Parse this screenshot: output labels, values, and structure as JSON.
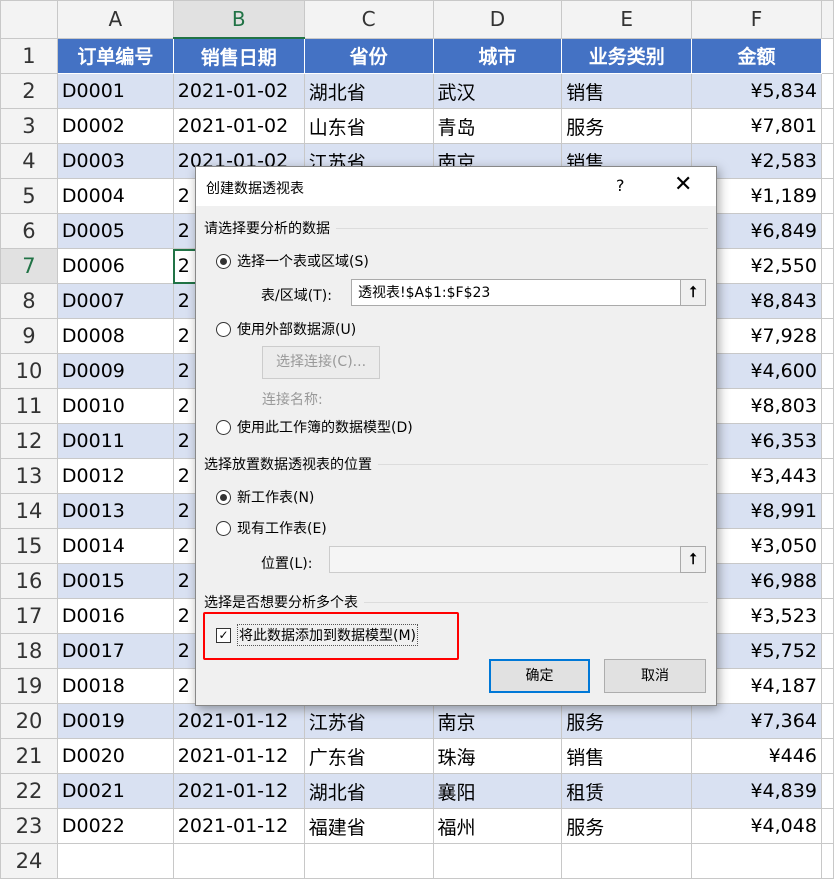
{
  "columns": [
    "A",
    "B",
    "C",
    "D",
    "E",
    "F"
  ],
  "header": [
    "订单编号",
    "销售日期",
    "省份",
    "城市",
    "业务类别",
    "金额"
  ],
  "rows": [
    [
      "D0001",
      "2021-01-02",
      "湖北省",
      "武汉",
      "销售",
      "¥5,834"
    ],
    [
      "D0002",
      "2021-01-02",
      "山东省",
      "青岛",
      "服务",
      "¥7,801"
    ],
    [
      "D0003",
      "2021-01-02",
      "江苏省",
      "南京",
      "销售",
      "¥2,583"
    ],
    [
      "D0004",
      "2",
      "",
      "",
      "",
      "¥1,189"
    ],
    [
      "D0005",
      "2",
      "",
      "",
      "",
      "¥6,849"
    ],
    [
      "D0006",
      "2",
      "",
      "",
      "",
      "¥2,550"
    ],
    [
      "D0007",
      "2",
      "",
      "",
      "",
      "¥8,843"
    ],
    [
      "D0008",
      "2",
      "",
      "",
      "",
      "¥7,928"
    ],
    [
      "D0009",
      "2",
      "",
      "",
      "",
      "¥4,600"
    ],
    [
      "D0010",
      "2",
      "",
      "",
      "",
      "¥8,803"
    ],
    [
      "D0011",
      "2",
      "",
      "",
      "",
      "¥6,353"
    ],
    [
      "D0012",
      "2",
      "",
      "",
      "",
      "¥3,443"
    ],
    [
      "D0013",
      "2",
      "",
      "",
      "",
      "¥8,991"
    ],
    [
      "D0014",
      "2",
      "",
      "",
      "",
      "¥3,050"
    ],
    [
      "D0015",
      "2",
      "",
      "",
      "",
      "¥6,988"
    ],
    [
      "D0016",
      "2",
      "",
      "",
      "",
      "¥3,523"
    ],
    [
      "D0017",
      "2",
      "",
      "",
      "",
      "¥5,752"
    ],
    [
      "D0018",
      "2",
      "",
      "",
      "",
      "¥4,187"
    ],
    [
      "D0019",
      "2021-01-12",
      "江苏省",
      "南京",
      "服务",
      "¥7,364"
    ],
    [
      "D0020",
      "2021-01-12",
      "广东省",
      "珠海",
      "销售",
      "¥446"
    ],
    [
      "D0021",
      "2021-01-12",
      "湖北省",
      "襄阳",
      "租赁",
      "¥4,839"
    ],
    [
      "D0022",
      "2021-01-12",
      "福建省",
      "福州",
      "服务",
      "¥4,048"
    ]
  ],
  "dialog": {
    "title": "创建数据透视表",
    "help": "?",
    "close": "✕",
    "sec1": "请选择要分析的数据",
    "opt_table": "选择一个表或区域(S)",
    "range_label": "表/区域(T):",
    "range_value": "透视表!$A$1:$F$23",
    "opt_external": "使用外部数据源(U)",
    "choose_conn": "选择连接(C)...",
    "conn_name": "连接名称:",
    "opt_model": "使用此工作簿的数据模型(D)",
    "sec2": "选择放置数据透视表的位置",
    "opt_new": "新工作表(N)",
    "opt_existing": "现有工作表(E)",
    "location_label": "位置(L):",
    "location_value": "",
    "sec3": "选择是否想要分析多个表",
    "add_model": "将此数据添加到数据模型(M)",
    "add_model_checked": true,
    "ok": "确定",
    "cancel": "取消"
  }
}
